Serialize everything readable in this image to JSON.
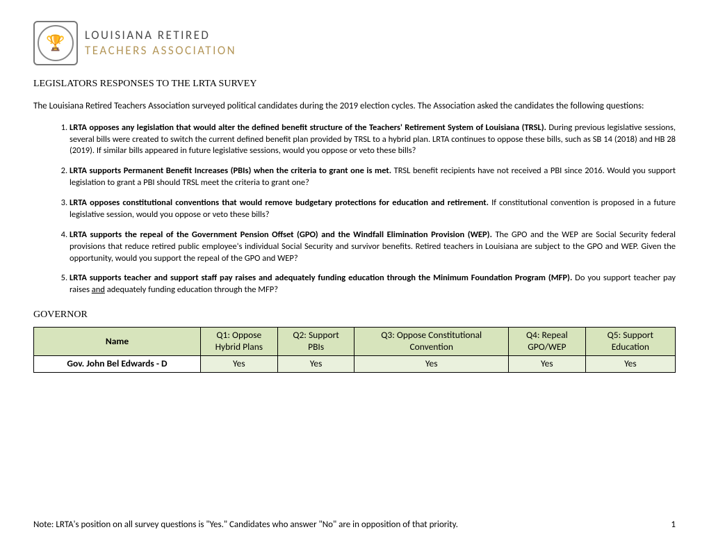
{
  "logo": {
    "line1": "LOUISIANA RETIRED",
    "line2": "TEACHERS ASSOCIATION",
    "seal_glyph": "🏆"
  },
  "doc_title": "LEGISLATORS RESPONSES TO THE LRTA SURVEY",
  "intro": "The Louisiana Retired Teachers Association surveyed political candidates during the 2019 election cycles. The Association asked the candidates the following questions:",
  "questions": [
    {
      "lead": "LRTA opposes any legislation that would alter the defined benefit structure of the Teachers' Retirement System of Louisiana (TRSL).",
      "rest": " During previous legislative sessions, several bills were created to switch the current defined benefit plan provided by TRSL to a hybrid plan. LRTA continues to oppose these bills, such as SB 14 (2018) and HB 28 (2019). If similar bills appeared in future legislative sessions, would you oppose or veto these bills?"
    },
    {
      "lead": "LRTA supports Permanent Benefit Increases (PBIs) when the criteria to grant one is met.",
      "rest": " TRSL benefit recipients have not received a PBI since 2016. Would you support legislation to grant a PBI should TRSL meet the criteria to grant one?"
    },
    {
      "lead": "LRTA opposes constitutional conventions that would remove budgetary protections for education and retirement.",
      "rest": " If constitutional convention is proposed in a future legislative session, would you oppose or veto these bills?"
    },
    {
      "lead": "LRTA supports the repeal of the Government Pension Offset (GPO) and the Windfall Elimination Provision (WEP).",
      "rest": " The GPO and the WEP are Social Security federal provisions that reduce retired public employee's individual Social Security and survivor benefits. Retired teachers in Louisiana are subject to the GPO and WEP. Given the opportunity, would you support the repeal of the GPO and WEP?"
    },
    {
      "lead": "LRTA supports teacher and support staff pay raises and adequately funding education through the Minimum Foundation Program (MFP).",
      "rest_pre": " Do you support teacher pay raises ",
      "rest_underline": "and",
      "rest_post": " adequately funding education through the MFP?"
    }
  ],
  "section_head": "GOVERNOR",
  "table": {
    "header_bg": "#d7e4bc",
    "row_bg": "#eaf1dd",
    "columns": {
      "name": "Name",
      "q1_l1": "Q1: Oppose",
      "q1_l2": "Hybrid Plans",
      "q2_l1": "Q2: Support",
      "q2_l2": "PBIs",
      "q3_l1": "Q3: Oppose Constitutional",
      "q3_l2": "Convention",
      "q4_l1": "Q4: Repeal",
      "q4_l2": "GPO/WEP",
      "q5_l1": "Q5: Support",
      "q5_l2": "Education"
    },
    "rows": [
      {
        "name": "Gov. John Bel Edwards - D",
        "q1": "Yes",
        "q2": "Yes",
        "q3": "Yes",
        "q4": "Yes",
        "q5": "Yes"
      }
    ]
  },
  "footer_note": "Note: LRTA's position on all survey questions is \"Yes.\" Candidates who answer \"No\" are in opposition of that priority.",
  "page_number": "1"
}
